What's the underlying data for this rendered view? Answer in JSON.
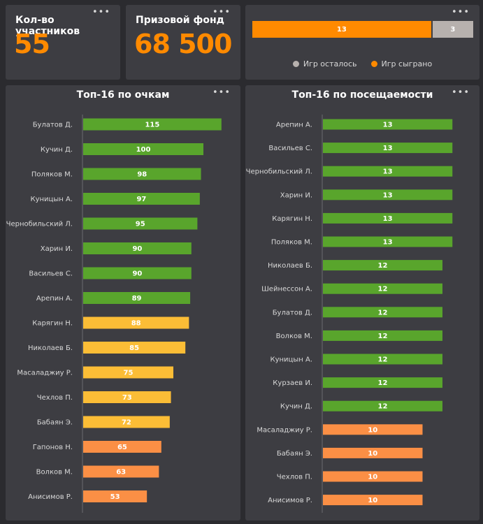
{
  "participants": {
    "label": "Кол-во участников",
    "value": "55"
  },
  "prize": {
    "label": "Призовой фонд",
    "value": "68 500"
  },
  "games": {
    "played": 13,
    "remaining": 3,
    "legend_remaining": "Игр осталось",
    "legend_played": "Игр сыграно"
  },
  "menu_icon": "ellipsis-icon",
  "colors": {
    "green": "#59a52c",
    "yellow": "#fbbd36",
    "orange": "#fb8f45",
    "accent": "#ff8a00",
    "grey": "#b7b1ae"
  },
  "chart_data": [
    {
      "type": "bar",
      "orientation": "horizontal",
      "title": "Топ-16 по очкам",
      "categories": [
        "Булатов Д.",
        "Кучин Д.",
        "Поляков М.",
        "Куницын А.",
        "Чернобильский Л.",
        "Харин И.",
        "Васильев С.",
        "Арепин А.",
        "Карягин Н.",
        "Николаев Б.",
        "Масаладжиу Р.",
        "Чехлов П.",
        "Бабаян Э.",
        "Гапонов Н.",
        "Волков М.",
        "Анисимов Р."
      ],
      "values": [
        115,
        100,
        98,
        97,
        95,
        90,
        90,
        89,
        88,
        85,
        75,
        73,
        72,
        65,
        63,
        53
      ],
      "color_groups": [
        "green",
        "green",
        "green",
        "green",
        "green",
        "green",
        "green",
        "green",
        "yellow",
        "yellow",
        "yellow",
        "yellow",
        "yellow",
        "orange",
        "orange",
        "orange"
      ],
      "xlim": [
        0,
        125
      ]
    },
    {
      "type": "bar",
      "orientation": "horizontal",
      "title": "Топ-16 по посещаемости",
      "categories": [
        "Арепин А.",
        "Васильев С.",
        "Чернобильский Л.",
        "Харин И.",
        "Карягин Н.",
        "Поляков М.",
        "Николаев Б.",
        "Шейнессон А.",
        "Булатов Д.",
        "Волков М.",
        "Куницын А.",
        "Курзаев И.",
        "Кучин Д.",
        "Масаладжиу Р.",
        "Бабаян Э.",
        "Чехлов П.",
        "Анисимов Р."
      ],
      "values": [
        13,
        13,
        13,
        13,
        13,
        13,
        12,
        12,
        12,
        12,
        12,
        12,
        12,
        10,
        10,
        10,
        10
      ],
      "color_groups": [
        "green",
        "green",
        "green",
        "green",
        "green",
        "green",
        "green",
        "green",
        "green",
        "green",
        "green",
        "green",
        "green",
        "orange",
        "orange",
        "orange",
        "orange"
      ],
      "xlim": [
        0,
        14
      ]
    }
  ]
}
